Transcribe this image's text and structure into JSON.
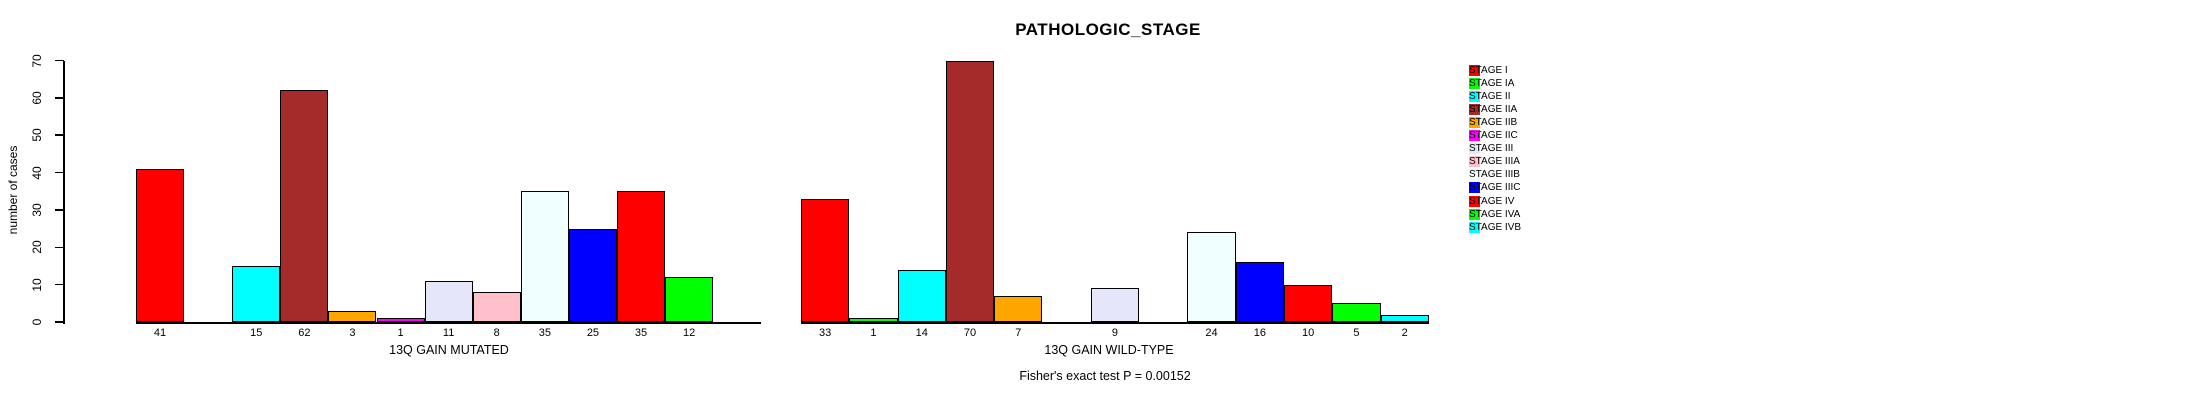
{
  "chart_data": {
    "type": "bar",
    "title": "PATHOLOGIC_STAGE",
    "ylabel": "number of cases",
    "ylim": [
      0,
      70
    ],
    "yticks": [
      0,
      10,
      20,
      30,
      40,
      50,
      60,
      70
    ],
    "grid": false,
    "legend_position": "right-top",
    "categories": [
      "STAGE I",
      "STAGE IA",
      "STAGE II",
      "STAGE IIA",
      "STAGE IIB",
      "STAGE IIC",
      "STAGE III",
      "STAGE IIIA",
      "STAGE IIIB",
      "STAGE IIIC",
      "STAGE IV",
      "STAGE IVA",
      "STAGE IVB"
    ],
    "palette": [
      "#FF0000",
      "#00FF00",
      "#00FFFF",
      "#A52A2A",
      "#FFA500",
      "#FF00FF",
      "#E6E6FA",
      "#FFC0CB",
      "#F0FFFF",
      "#0000FF",
      "#FF0000",
      "#00FF00",
      "#00FFFF"
    ],
    "panels": [
      {
        "xlabel": "13Q GAIN MUTATED",
        "values": [
          41,
          0,
          15,
          62,
          3,
          1,
          11,
          8,
          35,
          25,
          35,
          12,
          0
        ]
      },
      {
        "xlabel": "13Q GAIN WILD-TYPE",
        "values": [
          33,
          1,
          14,
          70,
          7,
          0,
          9,
          0,
          24,
          16,
          10,
          5,
          2
        ]
      }
    ],
    "annotation": "Fisher's exact test P = 0.00152",
    "axis_color": "#000000",
    "background_color": "#FFFFFF"
  }
}
